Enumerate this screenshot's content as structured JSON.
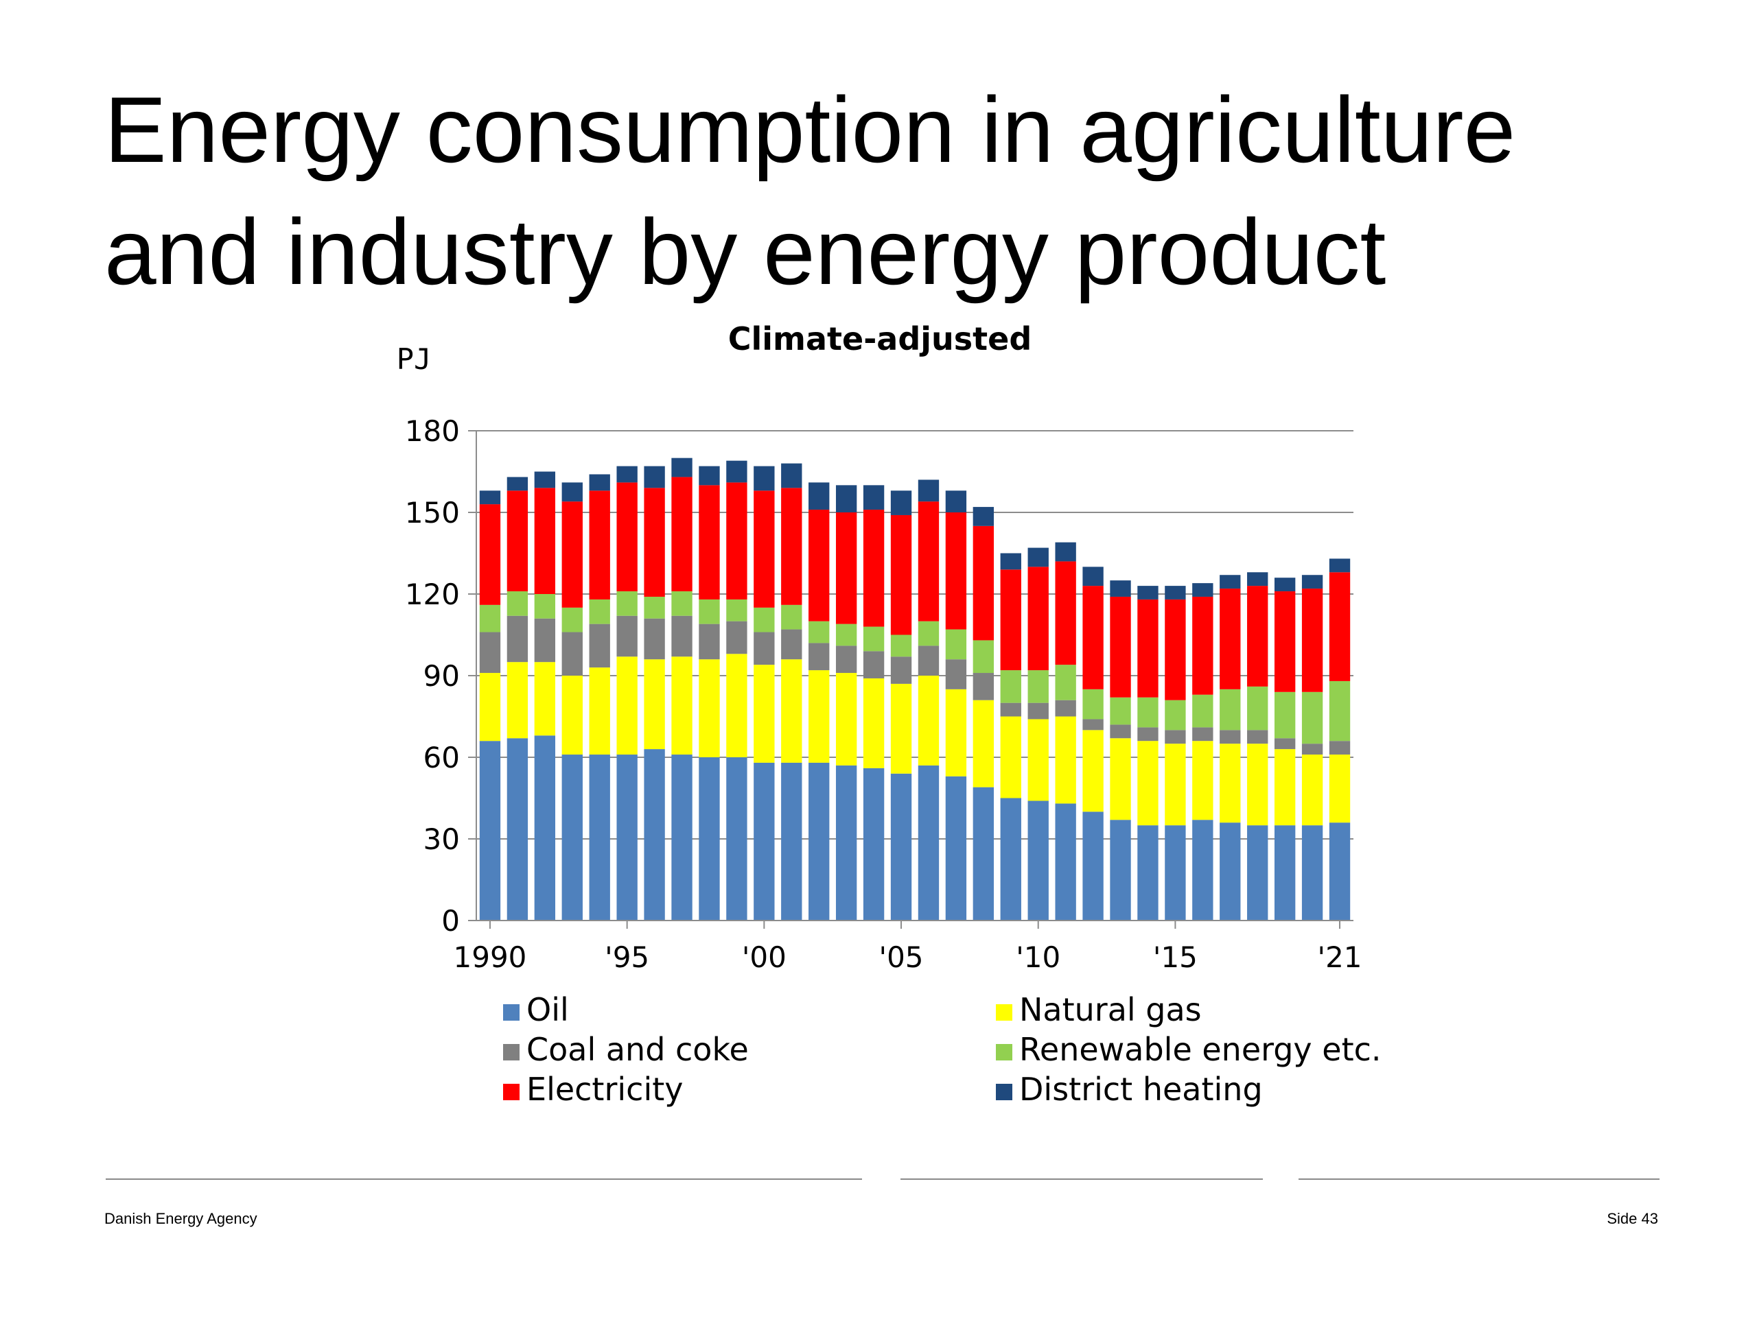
{
  "slide": {
    "title_line1": "Energy consumption in agriculture",
    "title_line2": "and industry by energy product",
    "footer_left": "Danish Energy Agency",
    "footer_right": "Side 43"
  },
  "chart_data": {
    "type": "bar",
    "stacked": true,
    "title": "Climate-adjusted",
    "ylabel": "PJ",
    "xlabel": "",
    "ylim": [
      0,
      180
    ],
    "yticks": [
      0,
      30,
      60,
      90,
      120,
      150,
      180
    ],
    "grid": true,
    "legend_position": "bottom",
    "categories": [
      "1990",
      "1991",
      "1992",
      "1993",
      "1994",
      "1995",
      "1996",
      "1997",
      "1998",
      "1999",
      "2000",
      "2001",
      "2002",
      "2003",
      "2004",
      "2005",
      "2006",
      "2007",
      "2008",
      "2009",
      "2010",
      "2011",
      "2012",
      "2013",
      "2014",
      "2015",
      "2016",
      "2017",
      "2018",
      "2019",
      "2020",
      "2021"
    ],
    "xtick_labels": [
      {
        "category": "1990",
        "label": "1990"
      },
      {
        "category": "1995",
        "label": "'95"
      },
      {
        "category": "2000",
        "label": "'00"
      },
      {
        "category": "2005",
        "label": "'05"
      },
      {
        "category": "2010",
        "label": "'10"
      },
      {
        "category": "2015",
        "label": "'15"
      },
      {
        "category": "2021",
        "label": "'21"
      }
    ],
    "series": [
      {
        "name": "Oil",
        "color": "#4f81bd",
        "values": [
          66,
          67,
          68,
          61,
          61,
          61,
          63,
          61,
          60,
          60,
          58,
          58,
          58,
          57,
          56,
          54,
          57,
          53,
          49,
          45,
          44,
          43,
          40,
          37,
          35,
          35,
          37,
          36,
          35,
          35,
          35,
          36
        ]
      },
      {
        "name": "Natural gas",
        "color": "#ffff00",
        "values": [
          25,
          28,
          27,
          29,
          32,
          36,
          33,
          36,
          36,
          38,
          36,
          38,
          34,
          34,
          33,
          33,
          33,
          32,
          32,
          30,
          30,
          32,
          30,
          30,
          31,
          30,
          29,
          29,
          30,
          28,
          26,
          25
        ]
      },
      {
        "name": "Coal and coke",
        "color": "#808080",
        "values": [
          15,
          17,
          16,
          16,
          16,
          15,
          15,
          15,
          13,
          12,
          12,
          11,
          10,
          10,
          10,
          10,
          11,
          11,
          10,
          5,
          6,
          6,
          4,
          5,
          5,
          5,
          5,
          5,
          5,
          4,
          4,
          5
        ]
      },
      {
        "name": "Renewable energy etc.",
        "color": "#92d050",
        "values": [
          10,
          9,
          9,
          9,
          9,
          9,
          8,
          9,
          9,
          8,
          9,
          9,
          8,
          8,
          9,
          8,
          9,
          11,
          12,
          12,
          12,
          13,
          11,
          10,
          11,
          11,
          12,
          15,
          16,
          17,
          19,
          22
        ]
      },
      {
        "name": "Electricity",
        "color": "#ff0000",
        "values": [
          37,
          37,
          39,
          39,
          40,
          40,
          40,
          42,
          42,
          43,
          43,
          43,
          41,
          41,
          43,
          44,
          44,
          43,
          42,
          37,
          38,
          38,
          38,
          37,
          36,
          37,
          36,
          37,
          37,
          37,
          38,
          40
        ]
      },
      {
        "name": "District heating",
        "color": "#1f497d",
        "values": [
          5,
          5,
          6,
          7,
          6,
          6,
          8,
          7,
          7,
          8,
          9,
          9,
          10,
          10,
          9,
          9,
          8,
          8,
          7,
          6,
          7,
          7,
          7,
          6,
          5,
          5,
          5,
          5,
          5,
          5,
          5,
          5
        ]
      }
    ]
  }
}
